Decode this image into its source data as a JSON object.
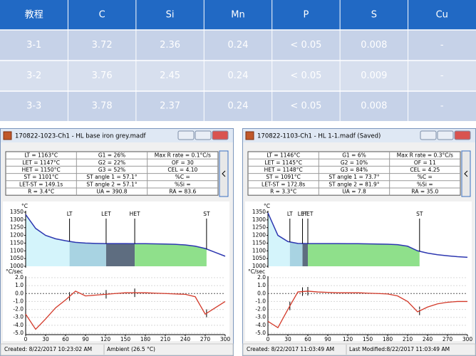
{
  "table": {
    "header": [
      "教程",
      "C",
      "Si",
      "Mn",
      "P",
      "S",
      "Cu"
    ],
    "rows": [
      [
        "3-1",
        "3.72",
        "2.36",
        "0.24",
        "< 0.05",
        "0.008",
        "-"
      ],
      [
        "3-2",
        "3.76",
        "2.45",
        "0.24",
        "< 0.05",
        "0.009",
        "-"
      ],
      [
        "3-3",
        "3.78",
        "2.37",
        "0.24",
        "< 0.05",
        "0.008",
        "-"
      ]
    ]
  },
  "windows": [
    {
      "title": "170822-1023-Ch1 - HL base iron grey.madf",
      "info": [
        [
          "LT = 1163°C",
          "G1 = 26%",
          "Max R rate = 0.1°C/s"
        ],
        [
          "LET = 1147°C",
          "G2 = 22%",
          "OF = 30"
        ],
        [
          "HET = 1150°C",
          "G3 = 52%",
          "CEL = 4.10"
        ],
        [
          "ST = 1101°C",
          "ST angle 1 = 57.1°",
          "%C ="
        ],
        [
          "LET-ST = 149.1s",
          "ST angle 2 = 57.1°",
          "%Si ="
        ],
        [
          "R = 3.4°C",
          "UA = 390.8",
          "RA = 83.6"
        ]
      ],
      "x": [
        0,
        15,
        30,
        45,
        60,
        75,
        90,
        105,
        120,
        135,
        150,
        165,
        180,
        195,
        210,
        225,
        240,
        255,
        270,
        285,
        300
      ],
      "xlim": [
        0,
        300
      ],
      "xticks": [
        0,
        30,
        60,
        90,
        120,
        150,
        180,
        210,
        240,
        270,
        300
      ],
      "cooling": {
        "unit": "°C",
        "ylim": [
          1000,
          1350
        ],
        "yticks": [
          1000,
          1050,
          1100,
          1150,
          1200,
          1250,
          1300,
          1350
        ],
        "values": [
          1335,
          1245,
          1200,
          1178,
          1165,
          1155,
          1150,
          1148,
          1147,
          1147,
          1147,
          1146,
          1146,
          1145,
          1144,
          1142,
          1138,
          1130,
          1115,
          1090,
          1065
        ],
        "markers": [
          {
            "label": "LT",
            "x": 66
          },
          {
            "label": "LET",
            "x": 121
          },
          {
            "label": "HET",
            "x": 164
          },
          {
            "label": "ST",
            "x": 272
          }
        ]
      },
      "derivative": {
        "unit": "°C/sec",
        "ylim": [
          -5,
          2
        ],
        "yticks": [
          {
            "value": 2,
            "label": "2.0"
          },
          {
            "value": 1,
            "label": "1.0"
          },
          {
            "value": 0,
            "label": "0.0"
          },
          {
            "value": -1,
            "label": "-1.0"
          },
          {
            "value": -2,
            "label": "-2.0"
          },
          {
            "value": -3,
            "label": "-3.0"
          },
          {
            "value": -4,
            "label": "-4.0"
          },
          {
            "value": -5,
            "label": "-5.0"
          }
        ],
        "values": [
          -2.6,
          -4.5,
          -3.2,
          -1.8,
          -0.8,
          0.3,
          -0.3,
          -0.2,
          -0.1,
          0,
          0.1,
          0.1,
          0.1,
          0.05,
          0,
          -0.05,
          -0.1,
          -0.4,
          -2.6,
          -1.8,
          -1.0
        ]
      },
      "status": [
        "Created: 8/22/2017 10:23:02 AM",
        "Ambient (26.5 °C)"
      ]
    },
    {
      "title": "170822-1103-Ch1 - HL 1-1.madf (Saved)",
      "info": [
        [
          "LT = 1146°C",
          "G1 = 6%",
          "Max R rate = 0.3°C/s"
        ],
        [
          "LET = 1145°C",
          "G2 = 10%",
          "OF = 11"
        ],
        [
          "HET = 1148°C",
          "G3 = 84%",
          "CEL = 4.25"
        ],
        [
          "ST = 1091°C",
          "ST angle 1 = 73.7°",
          "%C ="
        ],
        [
          "LET-ST = 172.8s",
          "ST angle 2 = 81.9°",
          "%Si ="
        ],
        [
          "R = 3.3°C",
          "UA = 7.8",
          "RA = 35.0"
        ]
      ],
      "x": [
        0,
        15,
        30,
        45,
        60,
        75,
        90,
        105,
        120,
        135,
        150,
        165,
        180,
        195,
        210,
        225,
        240,
        255,
        270,
        285,
        300
      ],
      "xlim": [
        0,
        300
      ],
      "xticks": [
        0,
        30,
        60,
        90,
        120,
        150,
        180,
        210,
        240,
        270,
        300
      ],
      "cooling": {
        "unit": "°C",
        "ylim": [
          1000,
          1350
        ],
        "yticks": [
          1000,
          1050,
          1100,
          1150,
          1200,
          1250,
          1300,
          1350
        ],
        "values": [
          1345,
          1200,
          1160,
          1148,
          1147,
          1147,
          1147,
          1147,
          1146,
          1146,
          1145,
          1144,
          1143,
          1140,
          1130,
          1100,
          1085,
          1075,
          1068,
          1062,
          1058
        ],
        "markers": [
          {
            "label": "LT",
            "x": 33
          },
          {
            "label": "LET",
            "x": 52
          },
          {
            "label": "HET",
            "x": 60
          },
          {
            "label": "ST",
            "x": 228
          }
        ]
      },
      "derivative": {
        "unit": "°C/sec",
        "ylim": [
          -5,
          2
        ],
        "yticks": [
          {
            "value": 2,
            "label": "2.0"
          },
          {
            "value": 1,
            "label": "1.0"
          },
          {
            "value": 0,
            "label": "0.0"
          },
          {
            "value": -1,
            "label": "-1.0"
          },
          {
            "value": -2,
            "label": "-2.0"
          },
          {
            "value": -3,
            "label": "-3.0"
          },
          {
            "value": -4,
            "label": "-4.0"
          },
          {
            "value": -5,
            "label": "-5.0"
          }
        ],
        "values": [
          -3.5,
          -4.3,
          -2.0,
          0.2,
          0.3,
          0.2,
          0.15,
          0.1,
          0.1,
          0.1,
          0.05,
          0,
          -0.05,
          -0.3,
          -1.0,
          -2.3,
          -1.7,
          -1.3,
          -1.1,
          -1.0,
          -1.0
        ]
      },
      "status": [
        "Created: 8/22/2017 11:03:49 AM",
        "Last Modified:8/22/2017 11:03:49 AM"
      ]
    }
  ]
}
